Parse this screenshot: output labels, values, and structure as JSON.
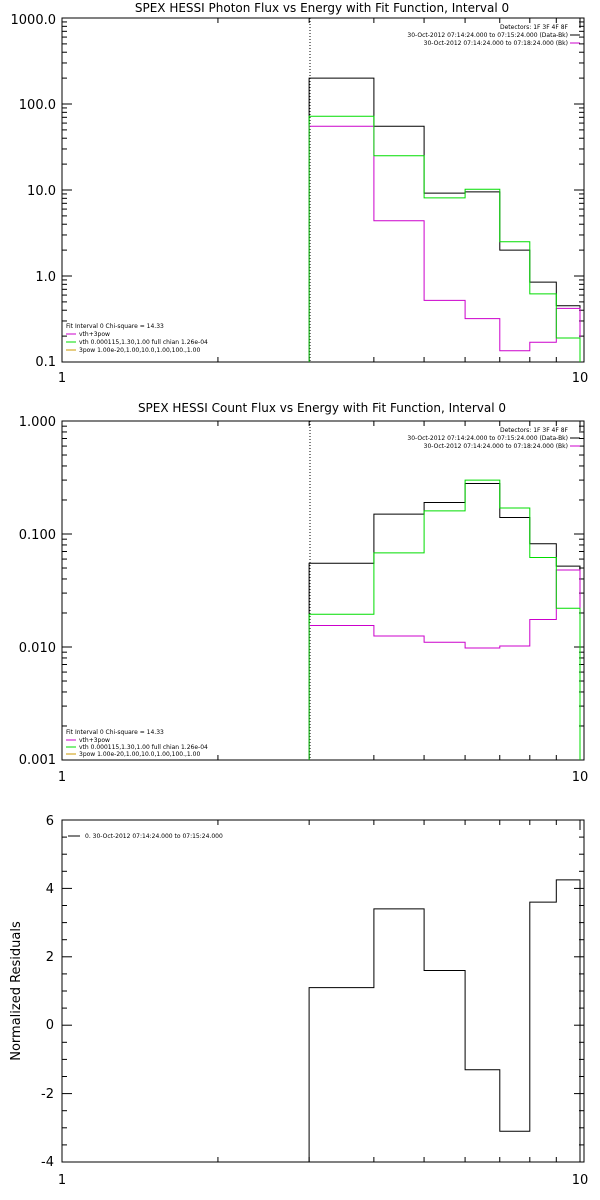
{
  "colors": {
    "data": "#000000",
    "total": "#cc00cc",
    "vth": "#00dd00",
    "bpow": "#cc9900",
    "residual": "#000000",
    "background": "#ffffff"
  },
  "chart_data": [
    {
      "type": "line",
      "step": true,
      "title": "SPEX HESSI Photon Flux vs Energy with Fit Function, Interval 0",
      "xlabel": "",
      "ylabel": "",
      "xscale": "log",
      "yscale": "log",
      "xlim": [
        1,
        10
      ],
      "ylim": [
        0.1,
        1000
      ],
      "xticks": [
        "1",
        "10"
      ],
      "yticks": [
        "1000.0",
        "100.0",
        "10.0",
        "1.0",
        "0.1"
      ],
      "vline_x": 3,
      "energy_edges": [
        3,
        4,
        5,
        6,
        7,
        8,
        9,
        10
      ],
      "header": [
        "Detectors: 1F 3F 4F 8F",
        "30-Oct-2012 07:14:24.000 to 07:15:24.000 (Data-Bk)",
        "30-Oct-2012 07:14:24.000 to 07:18:24.000 (Bk)"
      ],
      "fit_info": [
        "Fit Interval 0   Chi-square = 14.33",
        "vth+3pow",
        "vth 0.000115,1.30,1.00   full chian 1.26e-04",
        "3pow 1.00e-20,1.00,10.0,1.00,100.,1.00"
      ],
      "series": [
        {
          "name": "30-Oct-2012 07:14:24.000 to 07:15:24.000 (Data-Bk)",
          "color": "#000000",
          "values": [
            200,
            55,
            9.2,
            9.5,
            2.0,
            0.85,
            0.45
          ]
        },
        {
          "name": "vth+3pow",
          "color": "#cc00cc",
          "values": [
            55,
            4.4,
            0.52,
            0.32,
            0.135,
            0.17,
            0.42
          ]
        },
        {
          "name": "vth",
          "color": "#00dd00",
          "values": [
            72,
            25,
            8.1,
            10.2,
            2.5,
            0.62,
            0.19
          ]
        }
      ]
    },
    {
      "type": "line",
      "step": true,
      "title": "SPEX HESSI Count Flux vs Energy with Fit Function, Interval 0",
      "xlabel": "",
      "ylabel": "",
      "xscale": "log",
      "yscale": "log",
      "xlim": [
        1,
        10
      ],
      "ylim": [
        0.001,
        1
      ],
      "xticks": [
        "1",
        "10"
      ],
      "yticks": [
        "1.000",
        "0.100",
        "0.010",
        "0.001"
      ],
      "vline_x": 3,
      "energy_edges": [
        3,
        4,
        5,
        6,
        7,
        8,
        9,
        10
      ],
      "header": [
        "Detectors: 1F 3F 4F 8F",
        "30-Oct-2012 07:14:24.000 to 07:15:24.000 (Data-Bk)",
        "30-Oct-2012 07:14:24.000 to 07:18:24.000 (Bk)"
      ],
      "fit_info": [
        "Fit Interval 0   Chi-square = 14.33",
        "vth+3pow",
        "vth 0.000115,1.30,1.00   full chian 1.26e-04",
        "3pow 1.00e-20,1.00,10.0,1.00,100.,1.00"
      ],
      "series": [
        {
          "name": "30-Oct-2012 07:14:24.000 to 07:15:24.000 (Data-Bk)",
          "color": "#000000",
          "values": [
            0.055,
            0.15,
            0.19,
            0.28,
            0.14,
            0.082,
            0.052
          ]
        },
        {
          "name": "vth+3pow",
          "color": "#cc00cc",
          "values": [
            0.0155,
            0.0125,
            0.011,
            0.0098,
            0.0102,
            0.0175,
            0.048
          ]
        },
        {
          "name": "vth",
          "color": "#00dd00",
          "values": [
            0.0195,
            0.068,
            0.16,
            0.3,
            0.17,
            0.062,
            0.022
          ]
        }
      ]
    },
    {
      "type": "line",
      "step": true,
      "title": "",
      "xlabel": "",
      "ylabel": "Normalized Residuals",
      "xscale": "log",
      "yscale": "linear",
      "xlim": [
        1,
        10
      ],
      "ylim": [
        -4,
        6
      ],
      "xticks": [
        "1",
        "10"
      ],
      "yticks": [
        "6",
        "4",
        "2",
        "0",
        "-2",
        "-4"
      ],
      "energy_edges": [
        3,
        4,
        5,
        6,
        7,
        8,
        9,
        10
      ],
      "legend": [
        "0. 30-Oct-2012 07:14:24.000 to 07:15:24.000"
      ],
      "series": [
        {
          "name": "0. 30-Oct-2012 07:14:24.000 to 07:15:24.000",
          "color": "#000000",
          "values": [
            1.1,
            3.4,
            1.6,
            -1.3,
            -3.1,
            3.6,
            4.25
          ]
        }
      ]
    }
  ]
}
